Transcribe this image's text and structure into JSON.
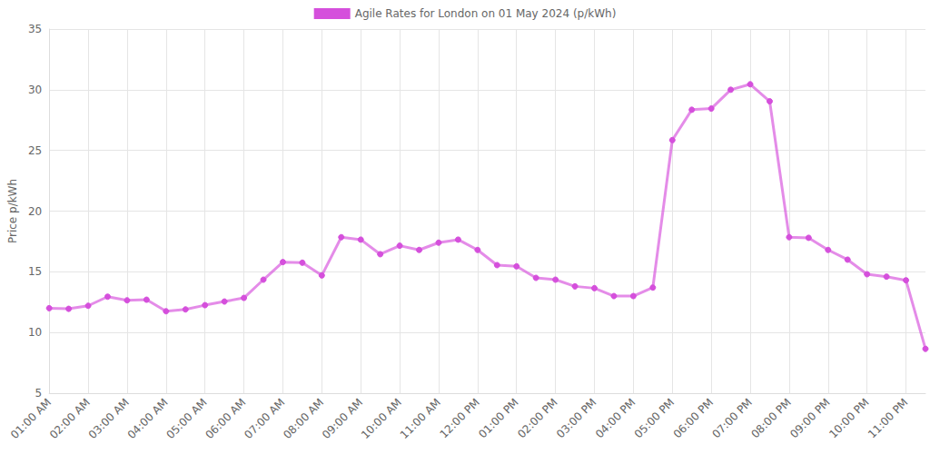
{
  "chart_data": {
    "type": "line",
    "categories": [
      "01:00 AM",
      null,
      "02:00 AM",
      null,
      "03:00 AM",
      null,
      "04:00 AM",
      null,
      "05:00 AM",
      null,
      "06:00 AM",
      null,
      "07:00 AM",
      null,
      "08:00 AM",
      null,
      "09:00 AM",
      null,
      "10:00 AM",
      null,
      "11:00 AM",
      null,
      "12:00 PM",
      null,
      "01:00 PM",
      null,
      "02:00 PM",
      null,
      "03:00 PM",
      null,
      "04:00 PM",
      null,
      "05:00 PM",
      null,
      "06:00 PM",
      null,
      "07:00 PM",
      null,
      "08:00 PM",
      null,
      "09:00 PM",
      null,
      "10:00 PM",
      null,
      "11:00 PM",
      null
    ],
    "series": [
      {
        "name": "Agile Rates for London on 01 May 2024 (p/kWh)",
        "color": "#d54fdc",
        "marker": "circle",
        "line_style": "solid",
        "values": [
          12.0,
          11.95,
          12.2,
          12.95,
          12.65,
          12.7,
          11.75,
          11.9,
          12.25,
          12.55,
          12.85,
          14.35,
          15.8,
          15.75,
          14.7,
          17.85,
          17.65,
          16.45,
          17.15,
          16.8,
          17.4,
          17.65,
          16.8,
          15.55,
          15.45,
          14.5,
          14.35,
          13.8,
          13.65,
          13.0,
          13.0,
          13.7,
          25.85,
          28.35,
          28.45,
          30.0,
          30.45,
          29.05,
          17.85,
          17.8,
          16.8,
          16.0,
          14.8,
          14.6,
          14.3,
          8.65
        ]
      }
    ],
    "y_label": "Price p/kWh",
    "ylim": [
      5,
      35
    ],
    "yticks": [
      5,
      10,
      15,
      20,
      25,
      30,
      35
    ],
    "grid": true,
    "legend": "top"
  }
}
